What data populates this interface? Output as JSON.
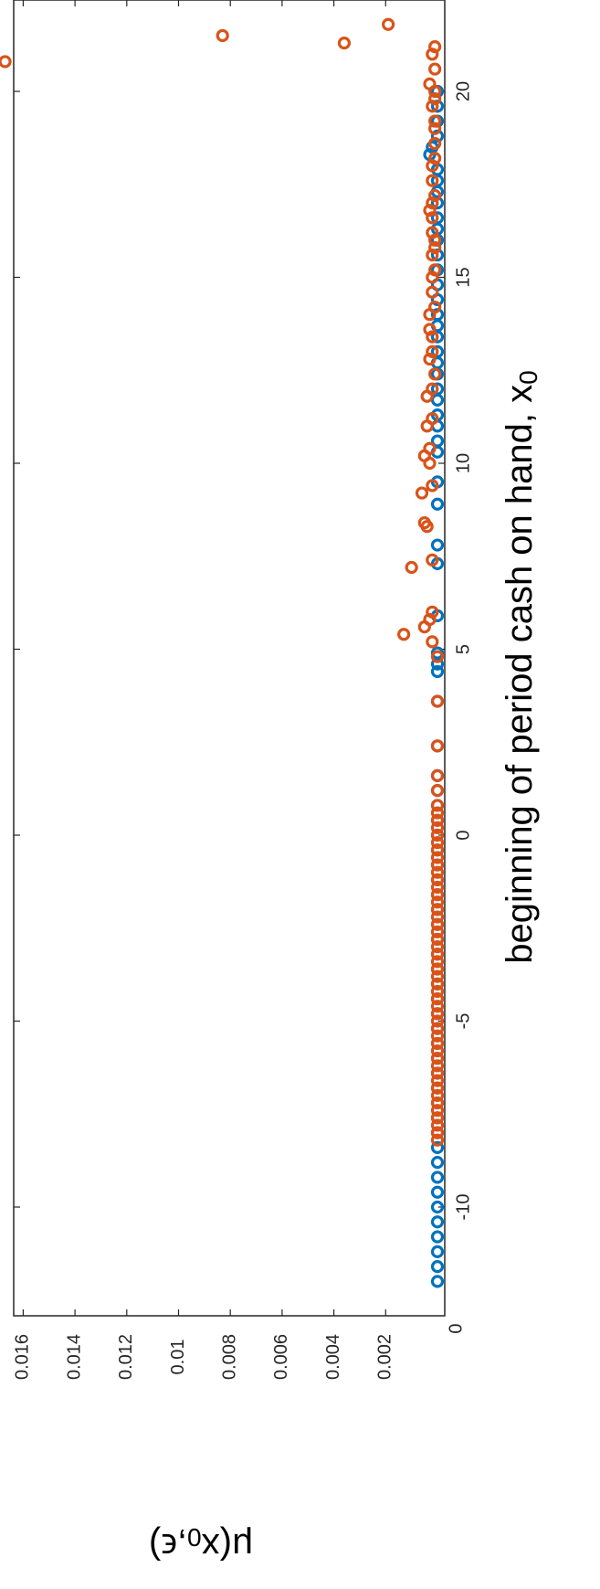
{
  "chart_data": {
    "type": "scatter",
    "xlabel_main": "beginning of period cash on hand, x",
    "xlabel_sub": "0",
    "ylabel_main": "μ(x",
    "ylabel_sub": "0",
    "ylabel_tail": ",ϵ)",
    "xlim": [
      -12,
      21.6
    ],
    "ylim": [
      0,
      0.0172
    ],
    "xticks": [
      -10,
      -5,
      0,
      5,
      10,
      15,
      20
    ],
    "xtick_labels": [
      "-10",
      "-5",
      "0",
      "5",
      "10",
      "15",
      "20"
    ],
    "yticks": [
      0.002,
      0.004,
      0.006,
      0.008,
      0.01,
      0.012,
      0.014,
      0.016
    ],
    "ytick_labels": [
      "0.002",
      "0.004",
      "0.006",
      "0.008",
      "0.01",
      "0.012",
      "0.014",
      "0.016"
    ],
    "y0_label": "0",
    "grid": false,
    "series": [
      {
        "color": "#0072BD",
        "x": [
          -12,
          -11.6,
          -11.2,
          -10.8,
          -10.4,
          -10,
          -9.6,
          -9.2,
          -8.8,
          -8.4,
          -8,
          -7.6,
          -7.2,
          -6.8,
          -6.4,
          -6,
          -5.6,
          -5.2,
          -4.8,
          -4.4,
          -4,
          -3.6,
          -3.2,
          -2.8,
          -2.4,
          -2,
          -1.6,
          -1.2,
          -0.8,
          -0.4,
          0,
          0.4,
          0.8,
          1.2,
          1.6,
          2.4,
          3.6,
          4.4,
          4.6,
          4.9,
          5.9,
          7.3,
          7.8,
          8.9,
          9.5,
          10.3,
          10.6,
          11,
          11.3,
          11.7,
          12,
          12.4,
          12.7,
          13,
          13.4,
          13.7,
          14,
          14.4,
          14.8,
          15.2,
          15.6,
          16,
          16.3,
          16.6,
          17,
          17.3,
          17.6,
          17.9,
          18.3,
          18.5,
          18.8,
          19.2,
          19.6,
          20
        ],
        "y": [
          0,
          0,
          0,
          0,
          0,
          0,
          0,
          0,
          0,
          0,
          0,
          0,
          0,
          0,
          0,
          0,
          0,
          0,
          0,
          0,
          0,
          0,
          0,
          0,
          0,
          0,
          0,
          0,
          0,
          0,
          0,
          0,
          0,
          0,
          0,
          0,
          0,
          0,
          0,
          0,
          0,
          0,
          0,
          0,
          0,
          0,
          0,
          0,
          0,
          0,
          0,
          0,
          0,
          0,
          0,
          0,
          0,
          0,
          0,
          0,
          0,
          0,
          0,
          0,
          0,
          0,
          0,
          0,
          0.0003,
          0.0002,
          0,
          0,
          0,
          0
        ]
      },
      {
        "color": "#D95319",
        "x": [
          -8.2,
          -8,
          -7.8,
          -7.6,
          -7.4,
          -7.2,
          -7,
          -6.8,
          -6.6,
          -6.4,
          -6.2,
          -6,
          -5.8,
          -5.6,
          -5.4,
          -5.2,
          -5,
          -4.8,
          -4.6,
          -4.4,
          -4.2,
          -4,
          -3.8,
          -3.6,
          -3.4,
          -3.2,
          -3,
          -2.8,
          -2.6,
          -2.4,
          -2.2,
          -2,
          -1.8,
          -1.6,
          -1.4,
          -1.2,
          -1,
          -0.8,
          -0.6,
          -0.4,
          -0.2,
          0,
          0.2,
          0.4,
          0.6,
          0.8,
          1.2,
          1.6,
          2.4,
          3.6,
          4.8,
          5.2,
          5.4,
          5.6,
          5.8,
          6,
          7.2,
          7.4,
          8.3,
          8.4,
          9.2,
          9.4,
          10,
          10.2,
          10.4,
          11,
          11.2,
          11.8,
          12,
          12.4,
          12.8,
          13,
          13.4,
          13.6,
          14,
          14.2,
          14.6,
          15,
          15.2,
          15.6,
          15.8,
          16,
          16.2,
          16.6,
          16.8,
          17,
          17.2,
          17.6,
          18,
          18.2,
          18.6,
          19,
          19.2,
          19.6,
          19.8,
          20,
          20.2,
          20.6,
          21,
          21.2,
          20.8,
          21.3,
          21.5,
          21.8
        ],
        "y": [
          0,
          0,
          0,
          0,
          0,
          0,
          0,
          0,
          0,
          0,
          0,
          0,
          0,
          0,
          0,
          0,
          0,
          0,
          0,
          0,
          0,
          0,
          0,
          0,
          0,
          0,
          0,
          0,
          0,
          0,
          0,
          0,
          0,
          0,
          0,
          0,
          0,
          0,
          0,
          0,
          0,
          0,
          0,
          0,
          0,
          0,
          0,
          0,
          0,
          0,
          0,
          0.0002,
          0.0013,
          0.0005,
          0.0003,
          0.0002,
          0.001,
          0.0002,
          0.0004,
          0.0005,
          0.0006,
          0.0002,
          0.0003,
          0.0005,
          0.0003,
          0.0004,
          0.0002,
          0.0004,
          0.0002,
          0.0001,
          0.0003,
          0.0002,
          0.0002,
          0.0003,
          0.0003,
          0.0001,
          0.0002,
          0.0002,
          0.0001,
          0.0002,
          0.0001,
          0.0001,
          0.0002,
          0.0002,
          0.0003,
          0.0002,
          0.0001,
          0.0002,
          0.0002,
          0.0001,
          0.0001,
          0.0001,
          0.0001,
          0.0002,
          0.0001,
          0.0001,
          0.0003,
          0.0001,
          0.0002,
          0.0001,
          0.0167,
          0.0036,
          0.0083,
          0.0019
        ]
      }
    ]
  }
}
